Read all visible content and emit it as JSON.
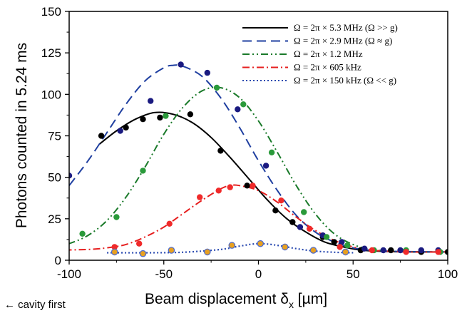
{
  "chart_data": {
    "type": "scatter",
    "xlabel": "Beam displacement δ",
    "xlabel_sub": "x",
    "xlabel_unit": " [µm]",
    "ylabel": "Photons counted in 5.24 ms",
    "xlim": [
      -100,
      100
    ],
    "ylim": [
      0,
      150
    ],
    "x_ticks": [
      -100,
      -50,
      0,
      50,
      100
    ],
    "y_ticks": [
      0,
      25,
      50,
      75,
      100,
      125,
      150
    ],
    "grid": false,
    "legend_position": "top-right",
    "annotation": "← cavity first",
    "series": [
      {
        "name": "Ω = 2π × 5.3 MHz (Ω >> g)",
        "color": "#000000",
        "dash": "",
        "marker": "#000000",
        "points": [
          [
            -83,
            75
          ],
          [
            -70,
            80
          ],
          [
            -61,
            85
          ],
          [
            -52,
            86
          ],
          [
            -36,
            88
          ],
          [
            -20,
            66
          ],
          [
            -6,
            45
          ],
          [
            9,
            30
          ],
          [
            18,
            23
          ],
          [
            34,
            14
          ],
          [
            40,
            11
          ],
          [
            54,
            6
          ],
          [
            70,
            6
          ],
          [
            86,
            5
          ],
          [
            100,
            5
          ]
        ],
        "fit": [
          [
            -84,
            70
          ],
          [
            -75,
            78
          ],
          [
            -65,
            85
          ],
          [
            -55,
            89
          ],
          [
            -45,
            88
          ],
          [
            -35,
            83
          ],
          [
            -25,
            74
          ],
          [
            -15,
            62
          ],
          [
            -5,
            49
          ],
          [
            5,
            36
          ],
          [
            15,
            25
          ],
          [
            25,
            17
          ],
          [
            35,
            11
          ],
          [
            45,
            8
          ],
          [
            55,
            6
          ],
          [
            70,
            5.2
          ],
          [
            85,
            5
          ],
          [
            100,
            5
          ]
        ]
      },
      {
        "name": "Ω = 2π × 2.9 MHz (Ω ≈ g)",
        "color": "#1f3fa0",
        "dash": "13,7",
        "marker": "#1a1a80",
        "points": [
          [
            -100,
            51
          ],
          [
            -73,
            78
          ],
          [
            -57,
            96
          ],
          [
            -41,
            118
          ],
          [
            -27,
            113
          ],
          [
            -11,
            91
          ],
          [
            4,
            57
          ],
          [
            22,
            20
          ],
          [
            34,
            15
          ],
          [
            44,
            11
          ],
          [
            56,
            7
          ],
          [
            66,
            6
          ],
          [
            75,
            6
          ],
          [
            86,
            6
          ],
          [
            95,
            6
          ]
        ],
        "fit": [
          [
            -100,
            45
          ],
          [
            -90,
            60
          ],
          [
            -80,
            77
          ],
          [
            -70,
            94
          ],
          [
            -60,
            108
          ],
          [
            -50,
            116
          ],
          [
            -45,
            117.5
          ],
          [
            -40,
            117
          ],
          [
            -30,
            111
          ],
          [
            -20,
            98
          ],
          [
            -10,
            80
          ],
          [
            0,
            60
          ],
          [
            10,
            42
          ],
          [
            20,
            27
          ],
          [
            30,
            17
          ],
          [
            40,
            11
          ],
          [
            50,
            7.5
          ],
          [
            60,
            6
          ],
          [
            75,
            5.3
          ],
          [
            100,
            5
          ]
        ]
      },
      {
        "name": "Ω = 2π × 1.2 MHz",
        "color": "#1a7a2a",
        "dash": "10,4,2,4,2,4",
        "marker": "#2a9a3a",
        "points": [
          [
            -93,
            16
          ],
          [
            -75,
            26
          ],
          [
            -61,
            54
          ],
          [
            -49,
            87
          ],
          [
            -22,
            104
          ],
          [
            -8,
            94
          ],
          [
            7,
            65
          ],
          [
            24,
            29
          ],
          [
            36,
            14
          ],
          [
            47,
            9
          ],
          [
            61,
            6
          ],
          [
            78,
            6
          ],
          [
            96,
            5
          ]
        ],
        "fit": [
          [
            -110,
            7
          ],
          [
            -100,
            10
          ],
          [
            -90,
            15
          ],
          [
            -80,
            24
          ],
          [
            -70,
            38
          ],
          [
            -60,
            56
          ],
          [
            -50,
            76
          ],
          [
            -40,
            92
          ],
          [
            -30,
            102
          ],
          [
            -20,
            104
          ],
          [
            -10,
            98
          ],
          [
            0,
            84
          ],
          [
            10,
            65
          ],
          [
            20,
            45
          ],
          [
            30,
            28
          ],
          [
            40,
            16
          ],
          [
            50,
            9.5
          ],
          [
            60,
            6.5
          ],
          [
            75,
            5.2
          ],
          [
            100,
            5
          ]
        ]
      },
      {
        "name": "Ω = 2π × 605 kHz",
        "color": "#e61e1e",
        "dash": "10,4,2,4",
        "marker": "#f02a2a",
        "points": [
          [
            -105,
            6
          ],
          [
            -76,
            8
          ],
          [
            -63,
            10
          ],
          [
            -47,
            22
          ],
          [
            -31,
            38
          ],
          [
            -21,
            42
          ],
          [
            -15,
            44
          ],
          [
            -3,
            45
          ],
          [
            12,
            36
          ],
          [
            27,
            19
          ],
          [
            43,
            8
          ],
          [
            60,
            6
          ],
          [
            78,
            5
          ],
          [
            95,
            5
          ]
        ],
        "fit": [
          [
            -110,
            6
          ],
          [
            -90,
            6.5
          ],
          [
            -80,
            7.5
          ],
          [
            -70,
            9.5
          ],
          [
            -60,
            14
          ],
          [
            -50,
            20
          ],
          [
            -40,
            28
          ],
          [
            -30,
            36
          ],
          [
            -20,
            43
          ],
          [
            -15,
            45
          ],
          [
            -10,
            45
          ],
          [
            0,
            42
          ],
          [
            10,
            35
          ],
          [
            20,
            26
          ],
          [
            30,
            18
          ],
          [
            40,
            12
          ],
          [
            50,
            8
          ],
          [
            60,
            6
          ],
          [
            80,
            5
          ],
          [
            100,
            5
          ]
        ]
      },
      {
        "name": "Ω = 2π × 150 kHz  (Ω << g)",
        "color": "#2a4ab0",
        "dash": "2,3",
        "marker": "#e8a020",
        "points": [
          [
            -76,
            5
          ],
          [
            -61,
            4
          ],
          [
            -46,
            6
          ],
          [
            -27,
            5
          ],
          [
            -14,
            9
          ],
          [
            1,
            10
          ],
          [
            14,
            8
          ],
          [
            29,
            6
          ],
          [
            46,
            5
          ]
        ],
        "fit": [
          [
            -80,
            4.5
          ],
          [
            -60,
            4.5
          ],
          [
            -40,
            4.8
          ],
          [
            -20,
            6.5
          ],
          [
            -10,
            8.5
          ],
          [
            0,
            10
          ],
          [
            10,
            9
          ],
          [
            20,
            7
          ],
          [
            30,
            5.5
          ],
          [
            40,
            4.8
          ],
          [
            50,
            4.5
          ]
        ]
      }
    ]
  }
}
